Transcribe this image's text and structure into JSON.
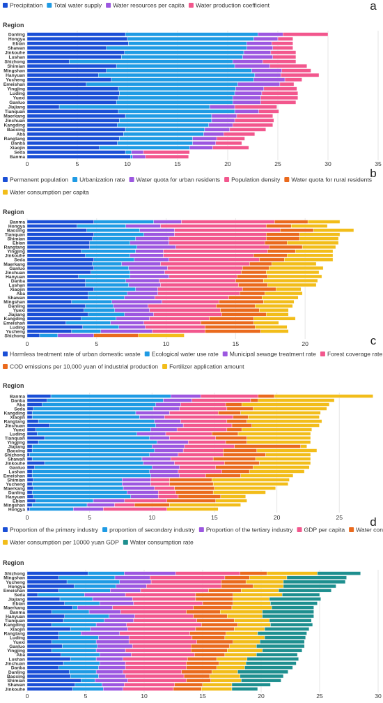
{
  "chart_data": [
    {
      "panel_label": "a",
      "type": "bar",
      "orientation": "horizontal",
      "stacked": true,
      "ylabel": "Region",
      "xlim": [
        0,
        35
      ],
      "xticks": [
        0,
        5,
        10,
        15,
        20,
        25,
        30,
        35
      ],
      "grid": true,
      "legend_position": "top-left",
      "categories": [
        "Danling",
        "Hongya",
        "Ebian",
        "Shawan",
        "Jinkouhe",
        "Lushan",
        "Shizhong",
        "Shimian",
        "Mingshan",
        "Hanyuan",
        "Yucheng",
        "Emeishan",
        "Yingjing",
        "Luding",
        "Yuexi",
        "Ganluo",
        "Jiajiang",
        "Tianquan",
        "Maerkang",
        "Jinchuan",
        "Kangding",
        "Baoxing",
        "Aba",
        "Rangtang",
        "Danba",
        "Xiaojin",
        "Seda",
        "Banma"
      ],
      "series": [
        {
          "name": "Precipitation",
          "color": "#1a4fd6",
          "values": [
            9.8,
            10.0,
            10.1,
            7.9,
            9.7,
            9.4,
            4.2,
            8.9,
            7.9,
            7.1,
            8.4,
            5.9,
            9.1,
            9.2,
            9.1,
            8.9,
            3.2,
            9.1,
            9.8,
            9.2,
            9.0,
            9.8,
            9.6,
            9.2,
            9.0,
            7.2,
            9.8,
            10.3
          ]
        },
        {
          "name": "Total water supply",
          "color": "#1f9be4",
          "values": [
            13.2,
            12.6,
            11.8,
            14.0,
            11.9,
            12.1,
            16.3,
            11.8,
            14.5,
            15.6,
            14.2,
            15.1,
            11.7,
            11.5,
            11.4,
            11.6,
            15.0,
            11.6,
            8.6,
            9.2,
            9.1,
            7.9,
            8.0,
            7.3,
            7.5,
            9.0,
            0.6,
            0.2
          ]
        },
        {
          "name": "Water resources per capita",
          "color": "#9c57e0",
          "values": [
            2.5,
            2.4,
            2.5,
            2.6,
            2.7,
            3.0,
            3.0,
            3.5,
            3.0,
            2.6,
            3.1,
            4.2,
            2.8,
            2.7,
            2.8,
            2.8,
            2.5,
            2.4,
            2.5,
            2.3,
            2.4,
            2.5,
            2.0,
            2.4,
            2.3,
            2.3,
            1.2,
            1.3
          ]
        },
        {
          "name": "Water production coefficient",
          "color": "#f2578d",
          "values": [
            4.5,
            1.5,
            2.1,
            2.0,
            2.5,
            2.3,
            3.3,
            3.7,
            2.9,
            3.8,
            1.7,
            1.4,
            3.3,
            3.6,
            3.7,
            3.5,
            4.2,
            2.0,
            3.6,
            3.9,
            4.0,
            3.6,
            3.1,
            2.8,
            2.6,
            3.6,
            4.6,
            4.3
          ]
        }
      ]
    },
    {
      "panel_label": "b",
      "type": "bar",
      "orientation": "horizontal",
      "stacked": true,
      "ylabel": "Region",
      "xlim": [
        0,
        23.5
      ],
      "xticks": [
        0,
        5,
        10,
        15,
        20
      ],
      "grid": true,
      "legend_position": "top-left",
      "categories": [
        "Banma",
        "Hongya",
        "Baoxing",
        "Tianquan",
        "Shimian",
        "Ebian",
        "Rangtang",
        "Yingjing",
        "Jinkouhe",
        "Seda",
        "Maerkang",
        "Ganluo",
        "Jinchuan",
        "Hanyuan",
        "Danba",
        "Lushan",
        "Xiaojin",
        "Aba",
        "Shawan",
        "Mingshan",
        "Danling",
        "Yuexi",
        "Jiajiang",
        "Kangding",
        "Emeishan",
        "Luding",
        "Yucheng",
        "Shizhong"
      ],
      "series": [
        {
          "name": "Permanent population",
          "color": "#1a4fd6",
          "values": [
            4.8,
            3.6,
            4.3,
            4.8,
            4.7,
            4.5,
            4.5,
            3.9,
            4.2,
            4.8,
            4.7,
            4.8,
            4.6,
            3.7,
            4.2,
            4.2,
            4.8,
            4.4,
            4.4,
            3.2,
            4.2,
            4.1,
            4.4,
            3.9,
            2.8,
            4.0,
            3.2,
            0.9
          ]
        },
        {
          "name": "Urbanization rate",
          "color": "#1f9be4",
          "values": [
            4.3,
            3.5,
            3.8,
            3.6,
            3.1,
            2.9,
            3.4,
            3.9,
            3.2,
            2.9,
            2.1,
            2.5,
            2.8,
            3.7,
            2.9,
            3.1,
            3.0,
            2.8,
            2.6,
            2.9,
            2.0,
            2.2,
            2.6,
            2.5,
            3.2,
            2.6,
            2.1,
            1.3
          ]
        },
        {
          "name": "Water quota for urban residents",
          "color": "#9c57e0",
          "values": [
            2.0,
            2.5,
            2.5,
            2.2,
            2.4,
            2.8,
            2.8,
            2.0,
            2.4,
            2.5,
            2.8,
            2.8,
            2.5,
            2.8,
            2.4,
            2.3,
            1.6,
            2.2,
            2.2,
            3.6,
            2.5,
            2.5,
            2.1,
            2.4,
            2.4,
            1.9,
            3.7,
            2.6
          ]
        },
        {
          "name": "Population density",
          "color": "#f2578d",
          "values": [
            6.7,
            7.6,
            7.6,
            6.6,
            7.0,
            6.9,
            6.7,
            7.5,
            6.5,
            6.5,
            6.4,
            5.4,
            5.5,
            4.9,
            5.5,
            5.6,
            6.1,
            5.9,
            5.3,
            4.1,
            4.9,
            5.1,
            4.9,
            4.3,
            4.1,
            4.3,
            3.8,
            0.0
          ]
        },
        {
          "name": "Water quota for rural residents",
          "color": "#ea6a1d",
          "values": [
            2.4,
            1.8,
            2.4,
            2.4,
            2.4,
            1.6,
            2.4,
            2.0,
            2.4,
            1.8,
            1.6,
            1.9,
            1.8,
            2.2,
            2.0,
            2.1,
            2.4,
            1.8,
            2.4,
            3.2,
            2.8,
            2.8,
            3.2,
            3.2,
            3.8,
            3.6,
            4.0,
            3.2
          ]
        },
        {
          "name": "Water consumption per capita",
          "color": "#f2bd1a",
          "values": [
            2.3,
            2.6,
            2.9,
            2.9,
            2.8,
            3.7,
            2.4,
            2.7,
            3.3,
            3.5,
            3.2,
            3.9,
            3.8,
            3.9,
            3.9,
            3.5,
            1.8,
            2.7,
            2.6,
            2.2,
            2.7,
            2.1,
            1.6,
            3.0,
            1.8,
            2.3,
            2.0,
            3.3
          ]
        }
      ]
    },
    {
      "panel_label": "c",
      "type": "bar",
      "orientation": "horizontal",
      "stacked": true,
      "ylabel": "Region",
      "xlim": [
        0,
        28.5
      ],
      "xticks": [
        0,
        5,
        10,
        15,
        20,
        25
      ],
      "grid": true,
      "legend_position": "top-left",
      "categories": [
        "Banma",
        "Danba",
        "Aba",
        "Seda",
        "Kangding",
        "Xiaojin",
        "Rangtang",
        "Jinchuan",
        "Yuexi",
        "Luding",
        "Tianquan",
        "Yingjing",
        "Jiajiang",
        "Baoxing",
        "Shizhong",
        "Shawan",
        "Jinkouhe",
        "Ganluo",
        "Lushan",
        "Emeishan",
        "Shimian",
        "Yucheng",
        "Maerkang",
        "Danling",
        "Hanyuan",
        "Ebian",
        "Mingshan",
        "Hongya"
      ],
      "series": [
        {
          "name": "Harmless treatment rate of urban domestic waste",
          "color": "#1a4fd6",
          "values": [
            1.9,
            1.6,
            1.2,
            0.5,
            0.4,
            0.4,
            0.9,
            1.8,
            0.7,
            0.8,
            1.4,
            0.9,
            0.4,
            0.4,
            0.2,
            0.4,
            1.4,
            0.6,
            0.4,
            0.4,
            0.5,
            0.4,
            0.5,
            0.4,
            0.5,
            0.7,
            0.4,
            0.2
          ]
        },
        {
          "name": "Ecological water use rate",
          "color": "#1f9be4",
          "values": [
            9.6,
            9.3,
            9.1,
            9.6,
            8.3,
            8.6,
            9.3,
            8.5,
            9.2,
            8.0,
            8.4,
            9.5,
            9.6,
            9.8,
            9.6,
            8.8,
            7.9,
            9.4,
            9.4,
            9.5,
            7.1,
            7.2,
            7.2,
            7.6,
            7.8,
            4.6,
            4.4,
            3.5
          ]
        },
        {
          "name": "Municipal sewage treatment rate",
          "color": "#9c57e0",
          "values": [
            2.4,
            2.3,
            2.0,
            2.1,
            2.7,
            2.0,
            2.1,
            2.2,
            2.1,
            2.3,
            1.6,
            2.5,
            2.6,
            2.3,
            2.3,
            2.3,
            2.5,
            2.2,
            2.3,
            2.3,
            2.3,
            2.3,
            2.5,
            2.5,
            2.2,
            2.5,
            2.2,
            2.4
          ]
        },
        {
          "name": "Forest coverage rate",
          "color": "#f2578d",
          "values": [
            4.6,
            4.7,
            3.6,
            3.8,
            3.9,
            5.5,
            3.7,
            3.9,
            4.0,
            3.7,
            3.7,
            3.0,
            4.0,
            3.2,
            3.6,
            3.4,
            4.0,
            2.9,
            3.5,
            2.1,
            1.5,
            1.5,
            1.6,
            1.4,
            1.6,
            3.4,
            1.6,
            5.1
          ]
        },
        {
          "name": "COD emissions per 10,000 yuan of industrial production",
          "color": "#ea6a1d",
          "values": [
            1.3,
            0.6,
            1.3,
            2.1,
            1.8,
            1.2,
            1.6,
            1.6,
            1.2,
            2.1,
            2.5,
            1.7,
            5.3,
            2.7,
            3.4,
            3.4,
            2.8,
            3.0,
            2.2,
            2.8,
            3.4,
            3.5,
            3.2,
            3.0,
            3.4,
            3.9,
            2.8,
            0.0
          ]
        },
        {
          "name": "Fertilizer application amount",
          "color": "#f2bd1a",
          "values": [
            7.9,
            6.1,
            7.0,
            5.9,
            6.4,
            5.7,
            6.0,
            5.4,
            5.6,
            5.8,
            5.1,
            5.1,
            0.5,
            4.8,
            3.6,
            4.4,
            4.1,
            4.5,
            4.4,
            4.2,
            6.2,
            6.0,
            4.9,
            4.2,
            2.0,
            2.5,
            5.7,
            4.1
          ]
        }
      ]
    },
    {
      "panel_label": "d",
      "type": "bar",
      "orientation": "horizontal",
      "stacked": true,
      "ylabel": "Region",
      "xlim": [
        0,
        30
      ],
      "xticks": [
        0,
        5,
        10,
        15,
        20,
        25,
        30
      ],
      "grid": true,
      "legend_position": "top-left",
      "categories": [
        "Shizhong",
        "Mingshan",
        "Yucheng",
        "Hongya",
        "Emeishan",
        "Seda",
        "Jiajiang",
        "Ebian",
        "Maerkang",
        "Banma",
        "Hanyuan",
        "Tianquan",
        "Kangding",
        "Xiaojin",
        "Rangtang",
        "Luding",
        "Yuexi",
        "Ganluo",
        "Yingjing",
        "Aba",
        "Lushan",
        "Jinchuan",
        "Danba",
        "Danling",
        "Baoxing",
        "Shimian",
        "Shawan",
        "Jinkouhe"
      ],
      "series": [
        {
          "name": "Proportion of the primary industry",
          "color": "#1a4fd6",
          "values": [
            5.2,
            2.7,
            3.4,
            4.0,
            2.7,
            0.9,
            2.8,
            3.2,
            3.9,
            2.1,
            3.2,
            3.1,
            2.1,
            3.7,
            2.7,
            2.7,
            2.1,
            3.0,
            2.1,
            2.9,
            3.7,
            3.1,
            2.7,
            3.6,
            3.7,
            4.6,
            4.1,
            3.9
          ]
        },
        {
          "name": "proportion of secondary industry",
          "color": "#1f9be4",
          "values": [
            3.1,
            4.8,
            4.5,
            3.6,
            4.4,
            4.0,
            2.8,
            3.0,
            0.4,
            3.2,
            3.8,
            3.5,
            3.8,
            1.7,
            1.9,
            3.4,
            3.8,
            3.0,
            3.8,
            3.3,
            2.2,
            3.1,
            3.4,
            2.3,
            2.4,
            1.2,
            2.3,
            2.6
          ]
        },
        {
          "name": "Proportion of the tertiary industry",
          "color": "#9c57e0",
          "values": [
            4.4,
            3.0,
            2.7,
            2.6,
            2.6,
            3.5,
            3.4,
            2.9,
            3.0,
            2.7,
            2.2,
            2.5,
            2.6,
            3.2,
            3.3,
            2.6,
            2.8,
            3.0,
            2.5,
            2.7,
            2.3,
            2.2,
            2.3,
            2.3,
            2.3,
            2.8,
            1.9,
            1.7
          ]
        },
        {
          "name": "GDP per capita",
          "color": "#f2578d",
          "values": [
            5.5,
            6.4,
            6.0,
            6.4,
            5.8,
            6.0,
            5.4,
            5.9,
            6.9,
            5.6,
            5.0,
            5.4,
            6.4,
            5.8,
            6.0,
            5.4,
            5.8,
            5.0,
            5.6,
            5.4,
            5.5,
            5.2,
            5.2,
            5.0,
            5.0,
            5.0,
            4.3,
            4.3
          ]
        },
        {
          "name": "Water consumption per hectare for agricultural irrigation",
          "color": "#ea6a1d",
          "values": [
            2.3,
            2.1,
            2.1,
            2.7,
            2.8,
            3.2,
            3.2,
            2.6,
            3.3,
            2.9,
            2.9,
            3.2,
            3.1,
            3.3,
            3.1,
            2.8,
            3.1,
            3.3,
            3.1,
            2.6,
            2.5,
            2.8,
            2.6,
            2.6,
            2.2,
            2.1,
            2.4,
            2.4
          ]
        },
        {
          "name": "Water consumption per 10000 yuan GDP",
          "color": "#f2bd1a",
          "values": [
            4.3,
            3.2,
            3.2,
            2.6,
            3.2,
            4.2,
            3.1,
            3.2,
            3.4,
            3.6,
            3.0,
            3.0,
            2.8,
            2.6,
            2.7,
            3.4,
            2.3,
            2.3,
            3.0,
            2.7,
            2.6,
            2.3,
            2.4,
            2.2,
            2.6,
            2.6,
            2.5,
            2.6
          ]
        },
        {
          "name": "Water consumption rate",
          "color": "#1e8f8f",
          "values": [
            3.7,
            5.1,
            5.3,
            4.5,
            4.5,
            3.2,
            4.4,
            4.0,
            3.6,
            4.4,
            4.4,
            3.6,
            3.6,
            3.8,
            4.2,
            3.5,
            3.8,
            4.1,
            3.4,
            3.5,
            4.4,
            4.3,
            4.1,
            4.3,
            3.7,
            3.4,
            3.3,
            2.2
          ]
        }
      ]
    }
  ]
}
